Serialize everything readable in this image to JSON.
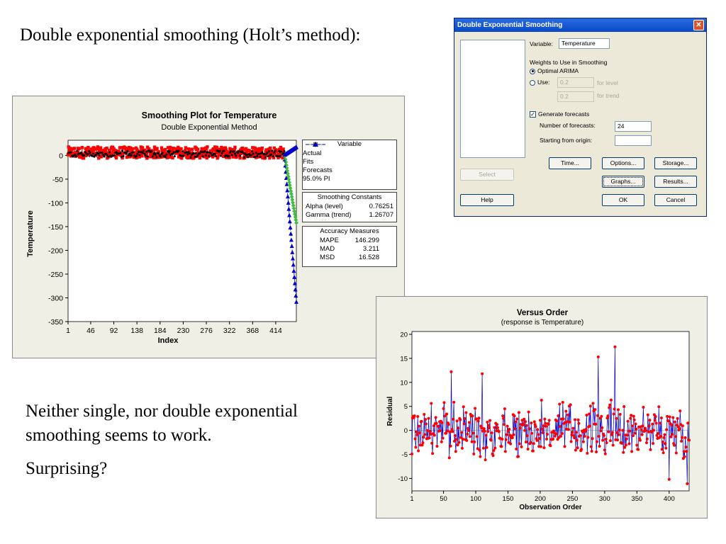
{
  "slide": {
    "title": "Double exponential smoothing (Holt’s method):",
    "body1": "Neither single, nor double exponential smoothing seems to work.",
    "body2": "Surprising?"
  },
  "dialog": {
    "title": "Double Exponential Smoothing",
    "close_glyph": "✕",
    "variable_label": "Variable:",
    "variable_value": "Temperature",
    "weights_label": "Weights to Use in Smoothing",
    "optimal_label": "Optimal ARIMA",
    "optimal_selected": true,
    "use_label": "Use:",
    "level_value": "0.2",
    "level_label": "for level",
    "trend_value": "0.2",
    "trend_label": "for trend",
    "generate_label": "Generate forecasts",
    "generate_checked": true,
    "check_glyph": "✓",
    "nforecasts_label": "Number of forecasts:",
    "nforecasts_value": "24",
    "origin_label": "Starting from origin:",
    "origin_value": "",
    "buttons": {
      "select": "Select",
      "help": "Help",
      "time": "Time...",
      "options": "Options...",
      "storage": "Storage...",
      "graphs": "Graphs...",
      "results": "Results...",
      "ok": "OK",
      "cancel": "Cancel"
    }
  },
  "smoothing_plot": {
    "title": "Smoothing Plot for Temperature",
    "subtitle": "Double Exponential Method",
    "legend_title": "Variable",
    "legend": [
      {
        "label": "Actual",
        "color": "#000000",
        "marker": "circle"
      },
      {
        "label": "Fits",
        "color": "#ff0000",
        "marker": "square"
      },
      {
        "label": "Forecasts",
        "color": "#44bb44",
        "marker": "diamond"
      },
      {
        "label": "95.0% PI",
        "color": "#0000cc",
        "marker": "triangle"
      }
    ],
    "constants_title": "Smoothing Constants",
    "constants": [
      {
        "name": "Alpha (level)",
        "value": "0.76251"
      },
      {
        "name": "Gamma (trend)",
        "value": "1.26707"
      }
    ],
    "accuracy_title": "Accuracy Measures",
    "accuracy": [
      {
        "name": "MAPE",
        "value": "146.299"
      },
      {
        "name": "MAD",
        "value": "3.211"
      },
      {
        "name": "MSD",
        "value": "16.528"
      }
    ]
  },
  "residual_plot": {
    "title": "Versus Order",
    "subtitle": "(response is Temperature)"
  },
  "chart_data": [
    {
      "type": "line",
      "title": "Smoothing Plot for Temperature",
      "subtitle": "Double Exponential Method",
      "xlabel": "Index",
      "ylabel": "Temperature",
      "xlim": [
        1,
        455
      ],
      "ylim": [
        -350,
        20
      ],
      "x_ticks": [
        1,
        46,
        92,
        138,
        184,
        230,
        276,
        322,
        368,
        414
      ],
      "y_ticks": [
        0,
        -50,
        -100,
        -150,
        -200,
        -250,
        -300,
        -350
      ],
      "legend_position": "right",
      "series": [
        {
          "name": "Actual",
          "color": "#000000",
          "x_range": [
            1,
            431
          ],
          "y_band": [
            -10,
            15
          ]
        },
        {
          "name": "Fits",
          "color": "#ff0000",
          "x_range": [
            1,
            431
          ],
          "y_band": [
            -12,
            20
          ]
        },
        {
          "name": "Forecasts",
          "color": "#44bb44",
          "x": [
            432,
            455
          ],
          "y": [
            -2,
            -142
          ]
        },
        {
          "name": "95.0% PI",
          "color": "#0000cc",
          "x": [
            432,
            455
          ],
          "upper": [
            2,
            18
          ],
          "lower": [
            -8,
            -308
          ]
        }
      ]
    },
    {
      "type": "scatter",
      "title": "Versus Order",
      "subtitle": "(response is Temperature)",
      "xlabel": "Observation Order",
      "ylabel": "Residual",
      "xlim": [
        1,
        431
      ],
      "ylim": [
        -12,
        20
      ],
      "x_ticks": [
        1,
        50,
        100,
        150,
        200,
        250,
        300,
        350,
        400
      ],
      "y_ticks": [
        20,
        15,
        10,
        5,
        0,
        -5,
        -10
      ],
      "points_color": "#ff0000",
      "line_color": "#0000cc",
      "n_points": 431,
      "y_range_approx": [
        -11,
        17.5
      ],
      "notable_points": [
        {
          "x": 62,
          "y": 12.2
        },
        {
          "x": 110,
          "y": 11.8
        },
        {
          "x": 290,
          "y": 15.3
        },
        {
          "x": 316,
          "y": 17.4
        },
        {
          "x": 400,
          "y": -10.2
        },
        {
          "x": 428,
          "y": -11.1
        }
      ]
    }
  ]
}
